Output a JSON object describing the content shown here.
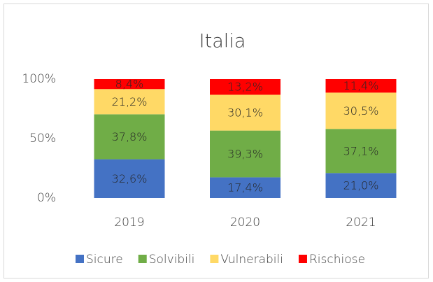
{
  "chart_data": {
    "type": "stacked_bar",
    "title": "Italia",
    "categories": [
      "2019",
      "2020",
      "2021"
    ],
    "series": [
      {
        "name": "Sicure",
        "color": "#4472c4",
        "values": [
          32.6,
          17.4,
          21.0
        ],
        "value_labels": [
          "32,6%",
          "17,4%",
          "21,0%"
        ]
      },
      {
        "name": "Solvibili",
        "color": "#70ad47",
        "values": [
          37.8,
          39.3,
          37.1
        ],
        "value_labels": [
          "37,8%",
          "39,3%",
          "37,1%"
        ]
      },
      {
        "name": "Vulnerabili",
        "color": "#ffd966",
        "values": [
          21.2,
          30.1,
          30.5
        ],
        "value_labels": [
          "21,2%",
          "30,1%",
          "30,5%"
        ]
      },
      {
        "name": "Rischiose",
        "color": "#ff0000",
        "values": [
          8.4,
          13.2,
          11.4
        ],
        "value_labels": [
          "8,4%",
          "13,2%",
          "11,4%"
        ]
      }
    ],
    "ylim": [
      0,
      100
    ],
    "yticks": [
      {
        "value": 0,
        "label": "0%"
      },
      {
        "value": 50,
        "label": "50%"
      },
      {
        "value": 100,
        "label": "100%"
      }
    ],
    "legend": "bottom"
  }
}
